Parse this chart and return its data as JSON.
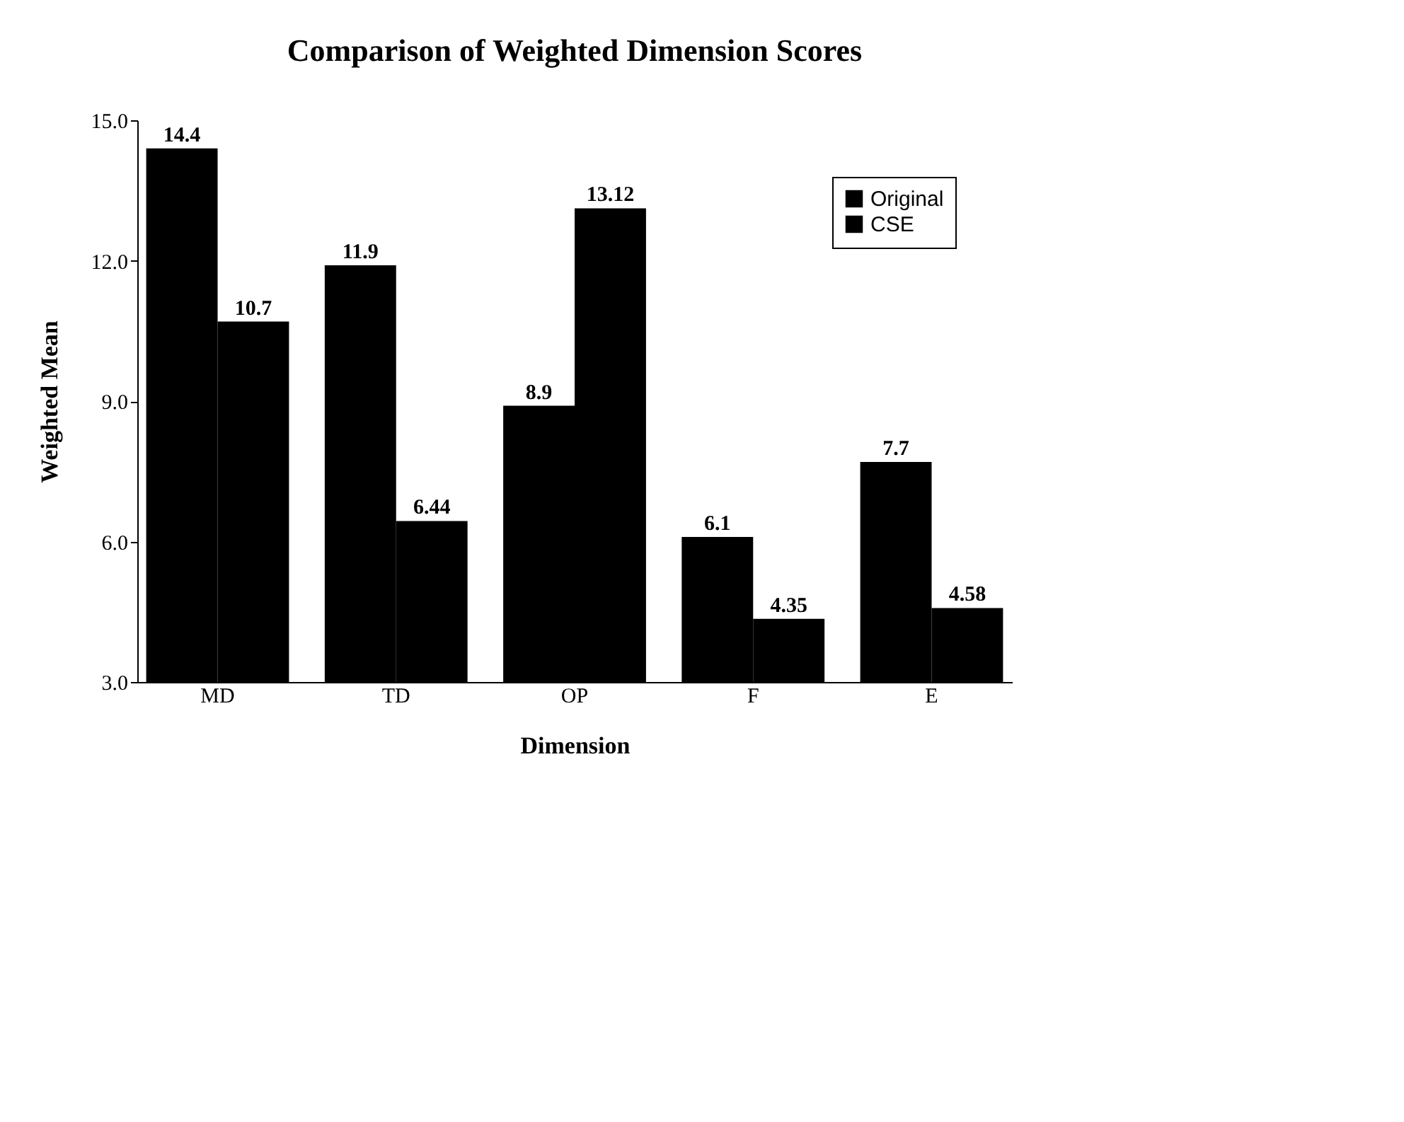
{
  "chart_data": {
    "type": "bar",
    "title": "Comparison of Weighted Dimension Scores",
    "xlabel": "Dimension",
    "ylabel": "Weighted Mean",
    "categories": [
      "MD",
      "TD",
      "OP",
      "F",
      "E"
    ],
    "series": [
      {
        "name": "Original",
        "color": "#000000",
        "values": [
          14.4,
          11.9,
          8.9,
          6.1,
          7.7
        ]
      },
      {
        "name": "CSE",
        "color": "#000000",
        "values": [
          10.7,
          6.44,
          13.12,
          4.35,
          4.58
        ]
      }
    ],
    "ylim": [
      3,
      15
    ],
    "yticks": [
      {
        "value": 3,
        "label": "3.0"
      },
      {
        "value": 6,
        "label": "6.0"
      },
      {
        "value": 9,
        "label": "9.0"
      },
      {
        "value": 12,
        "label": "12.0"
      },
      {
        "value": 15,
        "label": "15.0"
      }
    ],
    "data_labels": true,
    "legend": "top right",
    "grid": false
  }
}
